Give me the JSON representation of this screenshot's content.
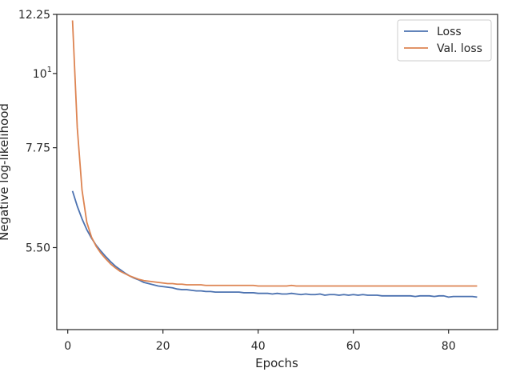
{
  "chart_data": {
    "type": "line",
    "xlabel": "Epochs",
    "ylabel": "Negative log-likelihood",
    "y_scale": "log",
    "xlim": [
      -2.3,
      90.3
    ],
    "ylim": [
      4.15,
      12.25
    ],
    "x_ticks": [
      0,
      20,
      40,
      60,
      80
    ],
    "y_ticks": [
      {
        "value": 12.25,
        "label": "12.25"
      },
      {
        "value": 10,
        "label": "10",
        "exponent": "1"
      },
      {
        "value": 7.75,
        "label": "7.75"
      },
      {
        "value": 5.5,
        "label": "5.50"
      }
    ],
    "grid": false,
    "legend_position": "top-right",
    "x": [
      1,
      2,
      3,
      4,
      5,
      6,
      7,
      8,
      9,
      10,
      11,
      12,
      13,
      14,
      15,
      16,
      17,
      18,
      19,
      20,
      21,
      22,
      23,
      24,
      25,
      26,
      27,
      28,
      29,
      30,
      31,
      32,
      33,
      34,
      35,
      36,
      37,
      38,
      39,
      40,
      41,
      42,
      43,
      44,
      45,
      46,
      47,
      48,
      49,
      50,
      51,
      52,
      53,
      54,
      55,
      56,
      57,
      58,
      59,
      60,
      61,
      62,
      63,
      64,
      65,
      66,
      67,
      68,
      69,
      70,
      71,
      72,
      73,
      74,
      75,
      76,
      77,
      78,
      79,
      80,
      81,
      82,
      83,
      84,
      85,
      86
    ],
    "series": [
      {
        "name": "Loss",
        "color": "#4c72b0",
        "values": [
          6.68,
          6.34,
          6.07,
          5.85,
          5.68,
          5.54,
          5.43,
          5.33,
          5.24,
          5.16,
          5.1,
          5.04,
          4.99,
          4.95,
          4.92,
          4.88,
          4.86,
          4.84,
          4.82,
          4.81,
          4.8,
          4.79,
          4.77,
          4.76,
          4.76,
          4.75,
          4.74,
          4.74,
          4.73,
          4.73,
          4.72,
          4.72,
          4.72,
          4.72,
          4.72,
          4.72,
          4.71,
          4.71,
          4.71,
          4.7,
          4.7,
          4.7,
          4.69,
          4.7,
          4.69,
          4.69,
          4.7,
          4.69,
          4.68,
          4.69,
          4.68,
          4.68,
          4.69,
          4.67,
          4.68,
          4.68,
          4.67,
          4.68,
          4.67,
          4.68,
          4.67,
          4.68,
          4.67,
          4.67,
          4.67,
          4.66,
          4.66,
          4.66,
          4.66,
          4.66,
          4.66,
          4.66,
          4.65,
          4.66,
          4.66,
          4.66,
          4.65,
          4.66,
          4.66,
          4.64,
          4.65,
          4.65,
          4.65,
          4.65,
          4.65,
          4.64
        ]
      },
      {
        "name": "Val. loss",
        "color": "#dd8452",
        "values": [
          12.0,
          8.3,
          6.7,
          6.0,
          5.7,
          5.52,
          5.39,
          5.29,
          5.2,
          5.13,
          5.07,
          5.03,
          4.99,
          4.96,
          4.93,
          4.91,
          4.9,
          4.89,
          4.88,
          4.87,
          4.86,
          4.86,
          4.85,
          4.85,
          4.84,
          4.84,
          4.84,
          4.84,
          4.83,
          4.83,
          4.83,
          4.83,
          4.83,
          4.83,
          4.83,
          4.83,
          4.83,
          4.83,
          4.83,
          4.82,
          4.82,
          4.82,
          4.82,
          4.82,
          4.82,
          4.82,
          4.83,
          4.82,
          4.82,
          4.82,
          4.82,
          4.82,
          4.82,
          4.82,
          4.82,
          4.82,
          4.82,
          4.82,
          4.82,
          4.82,
          4.82,
          4.82,
          4.82,
          4.82,
          4.82,
          4.82,
          4.82,
          4.82,
          4.82,
          4.82,
          4.82,
          4.82,
          4.82,
          4.82,
          4.82,
          4.82,
          4.82,
          4.82,
          4.82,
          4.82,
          4.82,
          4.82,
          4.82,
          4.82,
          4.82,
          4.82
        ]
      }
    ]
  }
}
